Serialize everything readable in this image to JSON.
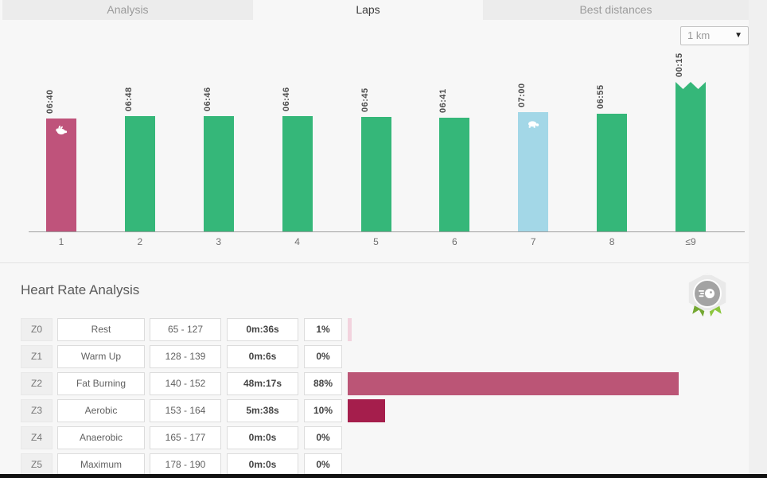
{
  "tabs": {
    "items": [
      {
        "label": "Analysis",
        "active": false
      },
      {
        "label": "Laps",
        "active": true
      },
      {
        "label": "Best distances",
        "active": false
      }
    ]
  },
  "toolbar": {
    "distance_select_value": "1 km",
    "dropdown_arrow": "▼"
  },
  "chart_data": {
    "type": "bar",
    "x_categories": [
      "1",
      "2",
      "3",
      "4",
      "5",
      "6",
      "7",
      "8",
      "≤9"
    ],
    "values": [
      "06:40",
      "06:48",
      "06:46",
      "06:46",
      "06:45",
      "06:41",
      "07:00",
      "06:55",
      "00:15"
    ],
    "bars": [
      {
        "lap": "1",
        "pace": "06:40",
        "pace_seconds": 400,
        "style": "fastest",
        "icon": "rabbit"
      },
      {
        "lap": "2",
        "pace": "06:48",
        "pace_seconds": 408,
        "style": "normal"
      },
      {
        "lap": "3",
        "pace": "06:46",
        "pace_seconds": 406,
        "style": "normal"
      },
      {
        "lap": "4",
        "pace": "06:46",
        "pace_seconds": 406,
        "style": "normal"
      },
      {
        "lap": "5",
        "pace": "06:45",
        "pace_seconds": 405,
        "style": "normal"
      },
      {
        "lap": "6",
        "pace": "06:41",
        "pace_seconds": 401,
        "style": "normal"
      },
      {
        "lap": "7",
        "pace": "07:00",
        "pace_seconds": 420,
        "style": "slowest",
        "icon": "turtle"
      },
      {
        "lap": "8",
        "pace": "06:55",
        "pace_seconds": 415,
        "style": "normal"
      },
      {
        "lap": "≤9",
        "pace": "00:15",
        "pace_seconds": 15,
        "style": "normal",
        "partial": true
      }
    ],
    "colors": {
      "fastest": "#bf537b",
      "normal": "#35b779",
      "slowest": "#a3d7e7"
    },
    "xlabel": "lap",
    "grid": false,
    "legend": null
  },
  "heart_rate": {
    "title": "Heart Rate Analysis",
    "zones": [
      {
        "zone": "Z0",
        "name": "Rest",
        "range": "65 - 127",
        "time": "0m:36s",
        "percent": "1%",
        "percent_value": 1,
        "bar_color": "#f2d3de"
      },
      {
        "zone": "Z1",
        "name": "Warm Up",
        "range": "128 - 139",
        "time": "0m:6s",
        "percent": "0%",
        "percent_value": 0,
        "bar_color": null
      },
      {
        "zone": "Z2",
        "name": "Fat Burning",
        "range": "140 - 152",
        "time": "48m:17s",
        "percent": "88%",
        "percent_value": 88,
        "bar_color": "#bb5576"
      },
      {
        "zone": "Z3",
        "name": "Aerobic",
        "range": "153 - 164",
        "time": "5m:38s",
        "percent": "10%",
        "percent_value": 10,
        "bar_color": "#a51e4c"
      },
      {
        "zone": "Z4",
        "name": "Anaerobic",
        "range": "165 - 177",
        "time": "0m:0s",
        "percent": "0%",
        "percent_value": 0,
        "bar_color": null
      },
      {
        "zone": "Z5",
        "name": "Maximum",
        "range": "178 - 190",
        "time": "0m:0s",
        "percent": "0%",
        "percent_value": 0,
        "bar_color": null
      }
    ]
  }
}
